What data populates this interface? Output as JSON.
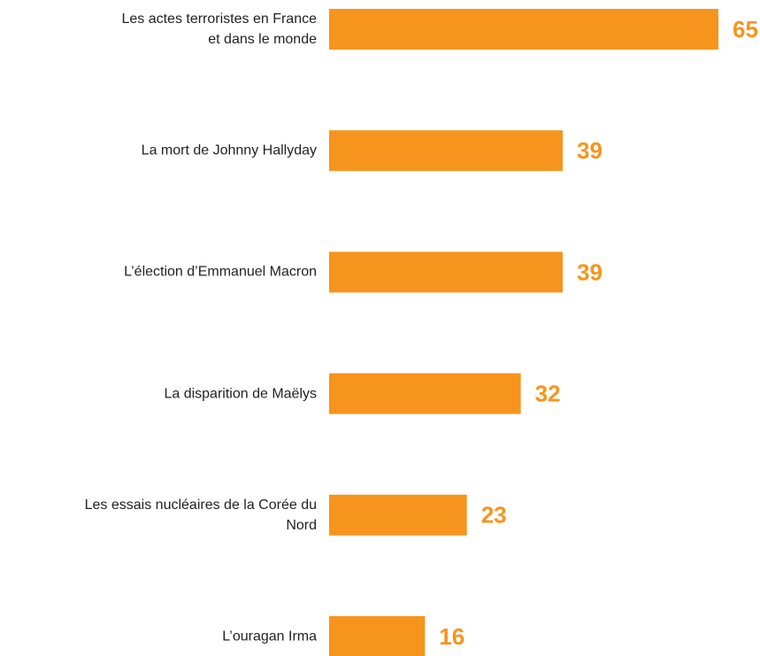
{
  "chart_data": {
    "type": "bar",
    "orientation": "horizontal",
    "categories": [
      "Les actes terroristes en France\net dans le monde",
      "La mort de Johnny Hallyday",
      "L’élection d’Emmanuel Macron",
      "La disparition de Maëlys",
      "Les essais nucléaires de la Corée du\nNord",
      "L’ouragan Irma"
    ],
    "values": [
      65,
      39,
      39,
      32,
      23,
      16
    ],
    "color": "#f7941d"
  }
}
